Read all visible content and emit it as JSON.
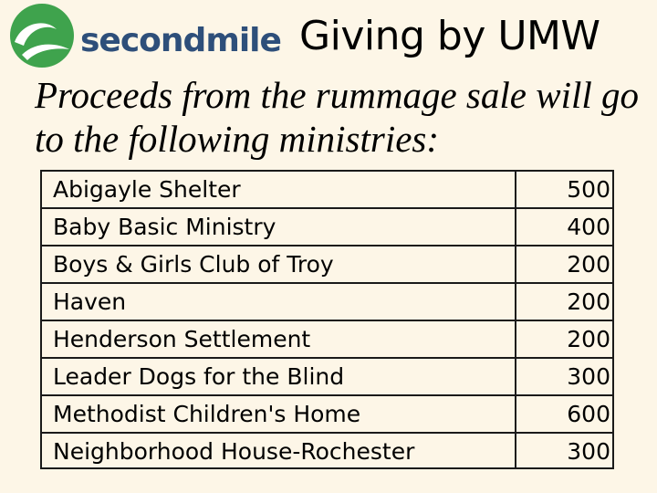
{
  "header": {
    "logo_text": "secondmile",
    "title": "Giving by UMW"
  },
  "subtitle": "Proceeds from the rummage sale will go to the following ministries:",
  "colors": {
    "logo_green": "#3fa34d",
    "logo_navy": "#2e4f7a",
    "background": "#fdf6e7"
  },
  "ministries": [
    {
      "name": "Abigayle Shelter",
      "amount": "500"
    },
    {
      "name": "Baby Basic Ministry",
      "amount": "400"
    },
    {
      "name": "Boys & Girls Club of Troy",
      "amount": "200"
    },
    {
      "name": "Haven",
      "amount": "200"
    },
    {
      "name": "Henderson Settlement",
      "amount": "200"
    },
    {
      "name": "Leader Dogs for the Blind",
      "amount": "300"
    },
    {
      "name": "Methodist Children's Home",
      "amount": "600"
    },
    {
      "name": "Neighborhood House-Rochester",
      "amount": "300"
    }
  ]
}
